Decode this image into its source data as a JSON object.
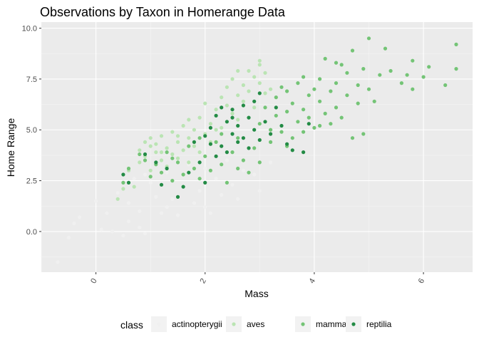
{
  "chart_data": {
    "type": "scatter",
    "title": "Observations by Taxon in Homerange Data",
    "xlabel": "Mass",
    "ylabel": "Home Range",
    "xlim": [
      -1,
      6.9
    ],
    "ylim": [
      -2.0,
      10.3
    ],
    "x_ticks": [
      0,
      2,
      4,
      6
    ],
    "y_ticks": [
      0.0,
      2.5,
      5.0,
      7.5,
      10.0
    ],
    "x_tick_labels": [
      "0",
      "2",
      "4",
      "6"
    ],
    "y_tick_labels": [
      "0.0",
      "2.5",
      "5.0",
      "7.5",
      "10.0"
    ],
    "grid": true,
    "legend": {
      "title": "class",
      "position": "bottom",
      "entries": [
        "actinopterygii",
        "aves",
        "mammalia",
        "reptilia"
      ]
    },
    "series": [
      {
        "name": "actinopterygii",
        "color": "#f0f0f0",
        "points": [
          [
            -0.7,
            -1.5
          ],
          [
            -0.5,
            -0.3
          ],
          [
            -0.4,
            0.4
          ],
          [
            -0.3,
            0.7
          ],
          [
            0.0,
            1.5
          ],
          [
            0.1,
            0.1
          ],
          [
            0.2,
            0.9
          ],
          [
            0.3,
            0.0
          ],
          [
            0.4,
            1.9
          ],
          [
            0.5,
            -0.2
          ],
          [
            0.6,
            0.5
          ],
          [
            0.6,
            1.4
          ],
          [
            0.7,
            2.6
          ],
          [
            0.8,
            0.2
          ],
          [
            0.8,
            1.0
          ],
          [
            0.9,
            -0.1
          ],
          [
            1.0,
            2.4
          ],
          [
            1.1,
            1.7
          ],
          [
            1.2,
            0.9
          ],
          [
            1.3,
            2.9
          ],
          [
            1.4,
            1.6
          ],
          [
            1.5,
            0.8
          ],
          [
            1.6,
            2.2
          ],
          [
            1.7,
            3.3
          ],
          [
            1.8,
            1.4
          ],
          [
            1.9,
            2.0
          ],
          [
            2.0,
            3.1
          ],
          [
            2.1,
            0.9
          ],
          [
            2.2,
            2.6
          ],
          [
            2.3,
            1.8
          ],
          [
            2.4,
            3.5
          ],
          [
            2.5,
            2.3
          ],
          [
            2.6,
            1.6
          ],
          [
            2.7,
            3.0
          ],
          [
            2.9,
            2.8
          ],
          [
            3.0,
            2.0
          ],
          [
            3.2,
            3.4
          ],
          [
            1.3,
            1.2
          ],
          [
            0.9,
            2.8
          ],
          [
            2.0,
            1.2
          ]
        ]
      },
      {
        "name": "aves",
        "color": "#bae4b3",
        "points": [
          [
            0.4,
            1.6
          ],
          [
            0.5,
            2.1
          ],
          [
            0.6,
            3.0
          ],
          [
            0.7,
            2.2
          ],
          [
            0.8,
            3.4
          ],
          [
            0.8,
            4.0
          ],
          [
            0.9,
            3.7
          ],
          [
            0.9,
            4.4
          ],
          [
            1.0,
            3.0
          ],
          [
            1.0,
            4.6
          ],
          [
            1.1,
            3.9
          ],
          [
            1.1,
            4.3
          ],
          [
            1.2,
            3.5
          ],
          [
            1.2,
            4.7
          ],
          [
            1.3,
            3.2
          ],
          [
            1.3,
            4.1
          ],
          [
            1.4,
            3.8
          ],
          [
            1.4,
            4.9
          ],
          [
            1.5,
            3.6
          ],
          [
            1.5,
            4.4
          ],
          [
            1.6,
            4.0
          ],
          [
            1.6,
            5.2
          ],
          [
            1.7,
            3.4
          ],
          [
            1.7,
            4.6
          ],
          [
            1.8,
            5.0
          ],
          [
            1.8,
            4.2
          ],
          [
            1.9,
            3.9
          ],
          [
            1.9,
            5.6
          ],
          [
            2.0,
            4.8
          ],
          [
            2.0,
            6.3
          ],
          [
            2.1,
            5.3
          ],
          [
            2.1,
            4.4
          ],
          [
            2.2,
            6.0
          ],
          [
            2.2,
            5.7
          ],
          [
            2.3,
            6.6
          ],
          [
            2.3,
            5.1
          ],
          [
            2.4,
            7.1
          ],
          [
            2.4,
            6.2
          ],
          [
            2.5,
            5.8
          ],
          [
            2.5,
            7.5
          ],
          [
            2.6,
            6.7
          ],
          [
            2.6,
            5.5
          ],
          [
            2.7,
            7.2
          ],
          [
            2.7,
            6.4
          ],
          [
            2.8,
            7.9
          ],
          [
            2.8,
            6.9
          ],
          [
            2.9,
            7.6
          ],
          [
            2.9,
            6.1
          ],
          [
            3.0,
            8.2
          ],
          [
            3.0,
            7.3
          ],
          [
            3.1,
            6.8
          ],
          [
            3.1,
            7.8
          ],
          [
            3.2,
            7.0
          ],
          [
            1.0,
            4.2
          ],
          [
            1.5,
            4.7
          ],
          [
            2.2,
            5.0
          ],
          [
            1.2,
            3.9
          ],
          [
            1.7,
            5.5
          ],
          [
            2.6,
            7.9
          ],
          [
            3.0,
            8.4
          ]
        ]
      },
      {
        "name": "mammalia",
        "color": "#74c476",
        "points": [
          [
            0.5,
            2.4
          ],
          [
            0.6,
            3.1
          ],
          [
            0.8,
            3.8
          ],
          [
            0.9,
            3.5
          ],
          [
            1.0,
            2.7
          ],
          [
            1.1,
            3.3
          ],
          [
            1.2,
            2.9
          ],
          [
            1.3,
            3.9
          ],
          [
            1.4,
            2.5
          ],
          [
            1.5,
            3.4
          ],
          [
            1.6,
            2.8
          ],
          [
            1.7,
            4.2
          ],
          [
            1.8,
            3.1
          ],
          [
            1.9,
            2.6
          ],
          [
            2.0,
            3.7
          ],
          [
            2.1,
            3.0
          ],
          [
            2.2,
            4.4
          ],
          [
            2.3,
            3.3
          ],
          [
            2.4,
            2.4
          ],
          [
            2.5,
            3.9
          ],
          [
            2.6,
            4.6
          ],
          [
            2.7,
            3.5
          ],
          [
            2.8,
            2.9
          ],
          [
            2.9,
            4.1
          ],
          [
            3.0,
            3.4
          ],
          [
            3.0,
            5.3
          ],
          [
            3.1,
            6.1
          ],
          [
            3.2,
            4.4
          ],
          [
            3.3,
            5.7
          ],
          [
            3.3,
            6.6
          ],
          [
            3.4,
            4.9
          ],
          [
            3.4,
            7.1
          ],
          [
            3.5,
            5.9
          ],
          [
            3.5,
            6.9
          ],
          [
            3.6,
            4.6
          ],
          [
            3.6,
            6.3
          ],
          [
            3.7,
            5.4
          ],
          [
            3.7,
            7.3
          ],
          [
            3.8,
            6.0
          ],
          [
            3.8,
            4.9
          ],
          [
            3.9,
            6.7
          ],
          [
            3.9,
            5.6
          ],
          [
            4.0,
            7.0
          ],
          [
            4.0,
            5.1
          ],
          [
            4.1,
            6.4
          ],
          [
            4.1,
            7.5
          ],
          [
            4.2,
            5.8
          ],
          [
            4.2,
            8.5
          ],
          [
            4.3,
            6.9
          ],
          [
            4.3,
            5.3
          ],
          [
            4.4,
            7.3
          ],
          [
            4.4,
            6.1
          ],
          [
            4.5,
            8.2
          ],
          [
            4.5,
            5.6
          ],
          [
            4.6,
            6.7
          ],
          [
            4.6,
            7.8
          ],
          [
            4.7,
            8.9
          ],
          [
            4.7,
            4.6
          ],
          [
            4.8,
            7.2
          ],
          [
            4.8,
            6.3
          ],
          [
            4.9,
            8.0
          ],
          [
            5.0,
            9.5
          ],
          [
            5.0,
            7.0
          ],
          [
            5.1,
            6.4
          ],
          [
            5.2,
            7.7
          ],
          [
            5.3,
            9.0
          ],
          [
            5.4,
            7.9
          ],
          [
            5.6,
            7.3
          ],
          [
            5.7,
            7.7
          ],
          [
            5.8,
            8.4
          ],
          [
            5.8,
            7.0
          ],
          [
            6.0,
            7.6
          ],
          [
            6.1,
            8.1
          ],
          [
            6.4,
            7.2
          ],
          [
            6.6,
            8.0
          ],
          [
            6.6,
            9.2
          ],
          [
            4.9,
            4.8
          ],
          [
            4.1,
            5.2
          ],
          [
            3.2,
            5.0
          ],
          [
            2.3,
            4.8
          ],
          [
            1.4,
            3.6
          ],
          [
            1.9,
            4.6
          ],
          [
            2.6,
            3.1
          ],
          [
            3.5,
            4.2
          ],
          [
            4.4,
            8.3
          ],
          [
            3.8,
            7.6
          ]
        ]
      },
      {
        "name": "reptilia",
        "color": "#238b45",
        "points": [
          [
            0.5,
            2.8
          ],
          [
            0.9,
            3.8
          ],
          [
            1.2,
            2.3
          ],
          [
            1.3,
            3.1
          ],
          [
            1.5,
            1.7
          ],
          [
            1.6,
            2.2
          ],
          [
            1.7,
            2.9
          ],
          [
            1.8,
            4.4
          ],
          [
            1.9,
            3.4
          ],
          [
            2.0,
            4.7
          ],
          [
            2.0,
            2.4
          ],
          [
            2.1,
            5.1
          ],
          [
            2.2,
            3.7
          ],
          [
            2.2,
            5.7
          ],
          [
            2.3,
            4.2
          ],
          [
            2.3,
            6.1
          ],
          [
            2.4,
            5.4
          ],
          [
            2.4,
            3.9
          ],
          [
            2.5,
            6.0
          ],
          [
            2.5,
            4.8
          ],
          [
            2.6,
            5.2
          ],
          [
            2.6,
            4.4
          ],
          [
            2.7,
            6.2
          ],
          [
            2.7,
            4.6
          ],
          [
            2.8,
            5.6
          ],
          [
            2.8,
            4.1
          ],
          [
            2.9,
            6.4
          ],
          [
            2.9,
            5.0
          ],
          [
            3.0,
            4.5
          ],
          [
            3.0,
            6.8
          ],
          [
            3.1,
            5.4
          ],
          [
            3.2,
            4.8
          ],
          [
            3.3,
            6.1
          ],
          [
            3.4,
            5.2
          ],
          [
            3.5,
            4.3
          ],
          [
            3.6,
            4.0
          ],
          [
            3.8,
            3.9
          ],
          [
            3.9,
            5.3
          ],
          [
            2.1,
            4.3
          ],
          [
            2.5,
            5.6
          ],
          [
            0.6,
            2.4
          ],
          [
            1.1,
            3.4
          ]
        ]
      }
    ]
  }
}
